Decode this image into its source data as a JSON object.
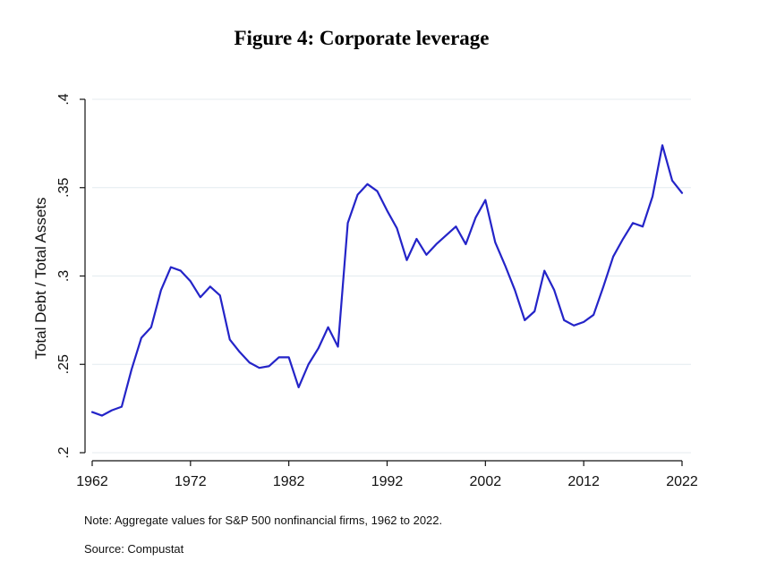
{
  "title": "Figure 4: Corporate leverage",
  "note": "Note: Aggregate values for S&P 500 nonfinancial firms, 1962 to 2022.",
  "source": "Source: Compustat",
  "chart_data": {
    "type": "line",
    "title": "Figure 4: Corporate leverage",
    "xlabel": "",
    "ylabel": "Total Debt / Total Assets",
    "xlim": [
      1962,
      2022
    ],
    "ylim": [
      0.2,
      0.4
    ],
    "xticks": [
      1962,
      1972,
      1982,
      1992,
      2002,
      2012,
      2022
    ],
    "yticks": [
      0.2,
      0.25,
      0.3,
      0.35,
      0.4
    ],
    "ytick_labels": [
      ".2",
      ".25",
      ".3",
      ".35",
      ".4"
    ],
    "grid": "horizontal",
    "line_color": "#2424c8",
    "x": [
      1962,
      1963,
      1964,
      1965,
      1966,
      1967,
      1968,
      1969,
      1970,
      1971,
      1972,
      1973,
      1974,
      1975,
      1976,
      1977,
      1978,
      1979,
      1980,
      1981,
      1982,
      1983,
      1984,
      1985,
      1986,
      1987,
      1988,
      1989,
      1990,
      1991,
      1992,
      1993,
      1994,
      1995,
      1996,
      1997,
      1998,
      1999,
      2000,
      2001,
      2002,
      2003,
      2004,
      2005,
      2006,
      2007,
      2008,
      2009,
      2010,
      2011,
      2012,
      2013,
      2014,
      2015,
      2016,
      2017,
      2018,
      2019,
      2020,
      2021,
      2022
    ],
    "series": [
      {
        "values": [
          0.223,
          0.221,
          0.224,
          0.226,
          0.247,
          0.265,
          0.271,
          0.292,
          0.305,
          0.303,
          0.297,
          0.288,
          0.294,
          0.289,
          0.264,
          0.257,
          0.251,
          0.248,
          0.249,
          0.254,
          0.254,
          0.237,
          0.25,
          0.259,
          0.271,
          0.26,
          0.33,
          0.346,
          0.352,
          0.348,
          0.337,
          0.327,
          0.309,
          0.321,
          0.312,
          0.318,
          0.323,
          0.328,
          0.318,
          0.333,
          0.343,
          0.319,
          0.306,
          0.292,
          0.275,
          0.28,
          0.303,
          0.292,
          0.275,
          0.272,
          0.274,
          0.278,
          0.294,
          0.311,
          0.321,
          0.33,
          0.328,
          0.345,
          0.374,
          0.354,
          0.347
        ]
      }
    ]
  }
}
